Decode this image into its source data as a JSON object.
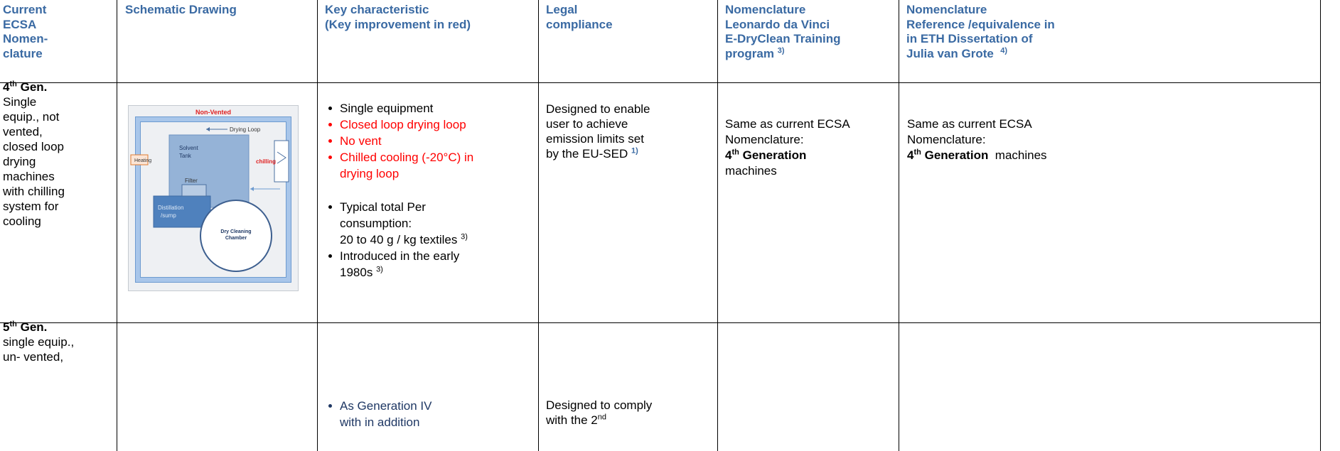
{
  "table": {
    "header": [
      {
        "lines": [
          "Current",
          "ECSA",
          "Nomen-",
          "clature"
        ]
      },
      {
        "lines": [
          "Schematic Drawing"
        ]
      },
      {
        "lines": [
          "Key characteristic",
          "(Key improvement in red)"
        ]
      },
      {
        "lines": [
          "Legal",
          "compliance"
        ]
      },
      {
        "lines": [
          "Nomenclature",
          "Leonardo da Vinci",
          "E-DryClean Training",
          "program"
        ],
        "sup": "3)"
      },
      {
        "lines": [
          "Nomenclature",
          "Reference /equivalence in",
          "in ETH Dissertation of",
          "Julia van Grote"
        ],
        "sup": "4)"
      }
    ],
    "rows": [
      {
        "generation": {
          "number": "4",
          "sup": "th",
          "label": "Gen."
        },
        "description": [
          "Single",
          "equip., not",
          "vented,",
          "closed loop",
          "drying",
          "machines",
          "with chilling",
          "system for",
          "cooling"
        ],
        "diagram": {
          "title": "Non-Vented",
          "loop": "Drying Loop",
          "tank": [
            "Solvent",
            "Tank"
          ],
          "heating": "Heating",
          "chilling": "chilling",
          "filter": "Filter",
          "sump": [
            "Distillation",
            "/sump"
          ],
          "chamber": [
            "Dry Cleaning",
            "Chamber"
          ]
        },
        "characteristics": [
          {
            "lines": [
              "Single equipment"
            ]
          },
          {
            "lines": [
              "Closed loop drying loop"
            ],
            "color": "#ff0000"
          },
          {
            "lines": [
              "No vent"
            ],
            "color": "#ff0000"
          },
          {
            "lines": [
              "Chilled cooling (-20°C) in",
              "drying loop"
            ],
            "color": "#ff0000"
          },
          {
            "lines": [
              "Typical total Per",
              "consumption:",
              "20 to 40 g / kg textiles"
            ],
            "sup": "3)"
          },
          {
            "lines": [
              "Introduced in the early",
              "1980s"
            ],
            "sup": "3)"
          }
        ],
        "legal": {
          "lines": [
            "Designed to enable",
            "user to achieve",
            "emission limits set",
            "by the EU-SED"
          ],
          "sup": "1)"
        },
        "nomenclature_leonardo": {
          "lines": [
            "Same as current ECSA",
            "Nomenclature:"
          ],
          "bold": "4",
          "bold_sup": "th",
          "bold_rest": "Generation",
          "after": "machines"
        },
        "nomenclature_eth": {
          "lines": [
            "Same as current ECSA",
            "Nomenclature:"
          ],
          "bold": "4",
          "bold_sup": "th",
          "bold_rest": "Generation",
          "after": "machines"
        }
      },
      {
        "generation": {
          "number": "5",
          "sup": "th",
          "label": "Gen."
        },
        "description": [
          "single equip.,",
          "un- vented,"
        ],
        "characteristics": [
          {
            "lines": [
              "As Generation IV",
              "with in addition"
            ],
            "color": "#1f3864"
          }
        ],
        "legal": {
          "lines": [
            "Designed to comply",
            "with the  2"
          ],
          "sup": "nd"
        }
      }
    ]
  }
}
